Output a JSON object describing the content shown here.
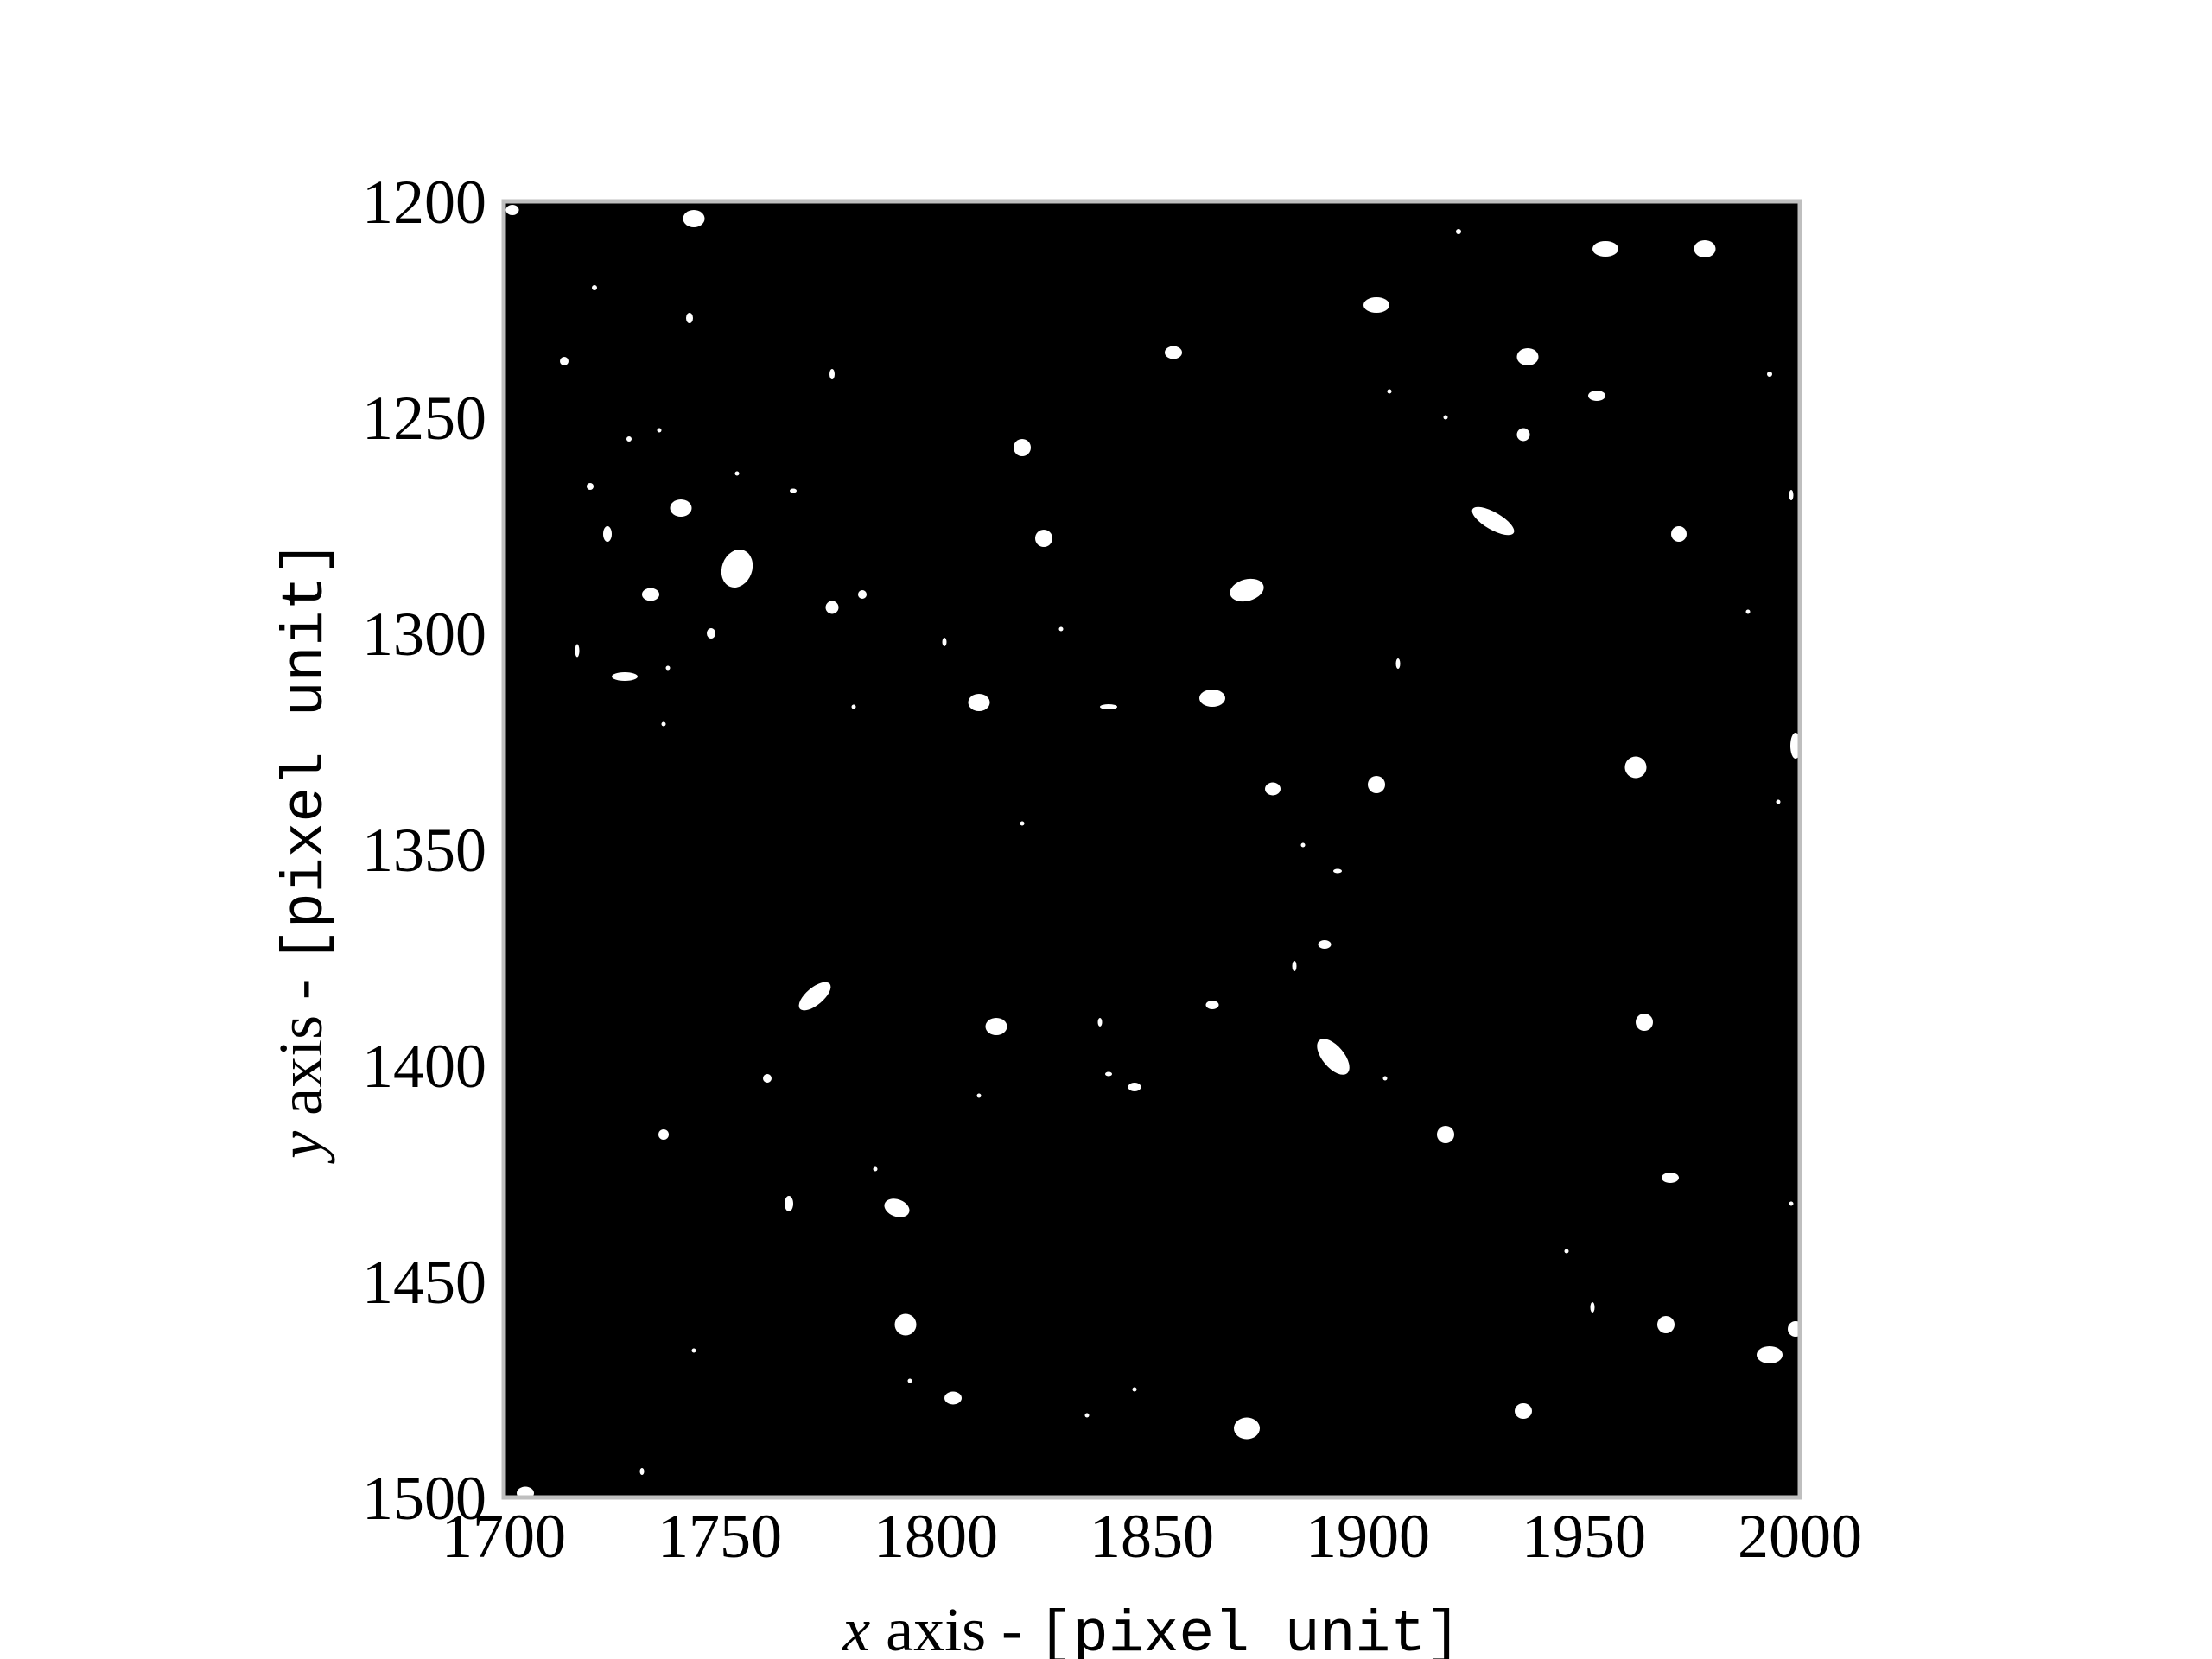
{
  "chart_data": {
    "type": "scatter",
    "title": "",
    "xlabel": {
      "var": "x",
      "text": " axis - ",
      "unit": "[pixel unit]"
    },
    "ylabel": {
      "var": "y",
      "text": " axis - ",
      "unit": "[pixel unit]"
    },
    "xlim": [
      1700,
      2000
    ],
    "ylim": [
      1200,
      1500
    ],
    "y_inverted": true,
    "grid": false,
    "legend": "none",
    "background_color": "#000000",
    "frame_color": "#bfbfbf",
    "point_color": "#ffffff",
    "xticks": [
      {
        "value": 1700,
        "label": "1700"
      },
      {
        "value": 1750,
        "label": "1750"
      },
      {
        "value": 1800,
        "label": "1800"
      },
      {
        "value": 1850,
        "label": "1850"
      },
      {
        "value": 1900,
        "label": "1900"
      },
      {
        "value": 1950,
        "label": "1950"
      },
      {
        "value": 2000,
        "label": "2000"
      }
    ],
    "yticks": [
      {
        "value": 1200,
        "label": "1200"
      },
      {
        "value": 1250,
        "label": "1250"
      },
      {
        "value": 1300,
        "label": "1300"
      },
      {
        "value": 1350,
        "label": "1350"
      },
      {
        "value": 1400,
        "label": "1400"
      },
      {
        "value": 1450,
        "label": "1450"
      },
      {
        "value": 1500,
        "label": "1500"
      }
    ],
    "series": [
      {
        "points": [
          {
            "x": 1702,
            "y": 1202,
            "rx": 1.5,
            "ry": 1.2
          },
          {
            "x": 1744,
            "y": 1204,
            "rx": 2.5,
            "ry": 2.0
          },
          {
            "x": 1921,
            "y": 1207,
            "rx": 0.6,
            "ry": 0.6
          },
          {
            "x": 1955,
            "y": 1211,
            "rx": 3.0,
            "ry": 1.8
          },
          {
            "x": 1978,
            "y": 1211,
            "rx": 2.5,
            "ry": 2.0
          },
          {
            "x": 1721,
            "y": 1220,
            "rx": 0.6,
            "ry": 0.6
          },
          {
            "x": 1902,
            "y": 1224,
            "rx": 3.0,
            "ry": 1.8
          },
          {
            "x": 1743,
            "y": 1227,
            "rx": 0.8,
            "ry": 1.2
          },
          {
            "x": 1855,
            "y": 1235,
            "rx": 2.0,
            "ry": 1.5
          },
          {
            "x": 1937,
            "y": 1236,
            "rx": 2.5,
            "ry": 2.0
          },
          {
            "x": 1714,
            "y": 1237,
            "rx": 1.0,
            "ry": 1.0
          },
          {
            "x": 1776,
            "y": 1240,
            "rx": 0.6,
            "ry": 1.2
          },
          {
            "x": 1993,
            "y": 1240,
            "rx": 0.6,
            "ry": 0.6
          },
          {
            "x": 1953,
            "y": 1245,
            "rx": 2.0,
            "ry": 1.2
          },
          {
            "x": 1905,
            "y": 1244,
            "rx": 0.5,
            "ry": 0.5
          },
          {
            "x": 1918,
            "y": 1250,
            "rx": 0.5,
            "ry": 0.5
          },
          {
            "x": 1736,
            "y": 1253,
            "rx": 0.5,
            "ry": 0.5
          },
          {
            "x": 1729,
            "y": 1255,
            "rx": 0.6,
            "ry": 0.6
          },
          {
            "x": 1936,
            "y": 1254,
            "rx": 1.5,
            "ry": 1.5
          },
          {
            "x": 1820,
            "y": 1257,
            "rx": 2.0,
            "ry": 2.0
          },
          {
            "x": 1754,
            "y": 1263,
            "rx": 0.5,
            "ry": 0.5
          },
          {
            "x": 1720,
            "y": 1266,
            "rx": 0.8,
            "ry": 0.8
          },
          {
            "x": 1767,
            "y": 1267,
            "rx": 0.8,
            "ry": 0.5
          },
          {
            "x": 1998,
            "y": 1268,
            "rx": 0.5,
            "ry": 1.2
          },
          {
            "x": 1741,
            "y": 1271,
            "rx": 2.5,
            "ry": 2.0
          },
          {
            "x": 1929,
            "y": 1274,
            "rx": 5.5,
            "ry": 2.0,
            "rotate": 30
          },
          {
            "x": 1724,
            "y": 1277,
            "rx": 1.0,
            "ry": 1.8
          },
          {
            "x": 1825,
            "y": 1278,
            "rx": 2.0,
            "ry": 2.0
          },
          {
            "x": 1972,
            "y": 1277,
            "rx": 1.8,
            "ry": 1.8
          },
          {
            "x": 1754,
            "y": 1285,
            "rx": 3.5,
            "ry": 4.5,
            "rotate": 20
          },
          {
            "x": 1872,
            "y": 1290,
            "rx": 4.0,
            "ry": 2.5,
            "rotate": -15
          },
          {
            "x": 1734,
            "y": 1291,
            "rx": 2.0,
            "ry": 1.5
          },
          {
            "x": 1783,
            "y": 1291,
            "rx": 1.0,
            "ry": 1.0
          },
          {
            "x": 1776,
            "y": 1294,
            "rx": 1.5,
            "ry": 1.5
          },
          {
            "x": 1988,
            "y": 1295,
            "rx": 0.5,
            "ry": 0.5
          },
          {
            "x": 1829,
            "y": 1299,
            "rx": 0.5,
            "ry": 0.5
          },
          {
            "x": 1748,
            "y": 1300,
            "rx": 1.0,
            "ry": 1.2
          },
          {
            "x": 1802,
            "y": 1302,
            "rx": 0.5,
            "ry": 1.0
          },
          {
            "x": 1717,
            "y": 1304,
            "rx": 0.5,
            "ry": 1.5
          },
          {
            "x": 1738,
            "y": 1308,
            "rx": 0.5,
            "ry": 0.5
          },
          {
            "x": 1907,
            "y": 1307,
            "rx": 0.5,
            "ry": 1.2
          },
          {
            "x": 1728,
            "y": 1310,
            "rx": 3.0,
            "ry": 1.0
          },
          {
            "x": 1810,
            "y": 1316,
            "rx": 2.5,
            "ry": 2.0
          },
          {
            "x": 1864,
            "y": 1315,
            "rx": 3.0,
            "ry": 2.0
          },
          {
            "x": 1840,
            "y": 1317,
            "rx": 2.0,
            "ry": 0.6
          },
          {
            "x": 1781,
            "y": 1317,
            "rx": 0.5,
            "ry": 0.5
          },
          {
            "x": 1737,
            "y": 1321,
            "rx": 0.5,
            "ry": 0.5
          },
          {
            "x": 1999,
            "y": 1326,
            "rx": 1.2,
            "ry": 3.0
          },
          {
            "x": 1962,
            "y": 1331,
            "rx": 2.5,
            "ry": 2.5
          },
          {
            "x": 1902,
            "y": 1335,
            "rx": 2.0,
            "ry": 2.0
          },
          {
            "x": 1878,
            "y": 1336,
            "rx": 1.8,
            "ry": 1.5
          },
          {
            "x": 1995,
            "y": 1339,
            "rx": 0.5,
            "ry": 0.5
          },
          {
            "x": 1820,
            "y": 1344,
            "rx": 0.5,
            "ry": 0.5
          },
          {
            "x": 1885,
            "y": 1349,
            "rx": 0.5,
            "ry": 0.5
          },
          {
            "x": 1893,
            "y": 1355,
            "rx": 1.0,
            "ry": 0.5
          },
          {
            "x": 1890,
            "y": 1372,
            "rx": 1.5,
            "ry": 1.0
          },
          {
            "x": 1883,
            "y": 1377,
            "rx": 0.5,
            "ry": 1.2
          },
          {
            "x": 1772,
            "y": 1384,
            "rx": 4.5,
            "ry": 2.0,
            "rotate": -40
          },
          {
            "x": 1864,
            "y": 1386,
            "rx": 1.5,
            "ry": 1.0
          },
          {
            "x": 1838,
            "y": 1390,
            "rx": 0.5,
            "ry": 1.0
          },
          {
            "x": 1814,
            "y": 1391,
            "rx": 2.5,
            "ry": 2.0
          },
          {
            "x": 1964,
            "y": 1390,
            "rx": 2.0,
            "ry": 2.0
          },
          {
            "x": 1892,
            "y": 1398,
            "rx": 5.0,
            "ry": 2.5,
            "rotate": 50
          },
          {
            "x": 1761,
            "y": 1403,
            "rx": 1.0,
            "ry": 1.0
          },
          {
            "x": 1840,
            "y": 1402,
            "rx": 0.8,
            "ry": 0.5
          },
          {
            "x": 1846,
            "y": 1405,
            "rx": 1.5,
            "ry": 1.0
          },
          {
            "x": 1904,
            "y": 1403,
            "rx": 0.5,
            "ry": 0.5
          },
          {
            "x": 1810,
            "y": 1407,
            "rx": 0.5,
            "ry": 0.5
          },
          {
            "x": 1918,
            "y": 1416,
            "rx": 2.0,
            "ry": 2.0
          },
          {
            "x": 1737,
            "y": 1416,
            "rx": 1.2,
            "ry": 1.2
          },
          {
            "x": 1786,
            "y": 1424,
            "rx": 0.5,
            "ry": 0.5
          },
          {
            "x": 1970,
            "y": 1426,
            "rx": 2.0,
            "ry": 1.2
          },
          {
            "x": 1766,
            "y": 1432,
            "rx": 1.0,
            "ry": 1.8
          },
          {
            "x": 1791,
            "y": 1433,
            "rx": 3.0,
            "ry": 2.0,
            "rotate": 20
          },
          {
            "x": 1998,
            "y": 1432,
            "rx": 0.5,
            "ry": 0.5
          },
          {
            "x": 1946,
            "y": 1443,
            "rx": 0.5,
            "ry": 0.5
          },
          {
            "x": 1952,
            "y": 1456,
            "rx": 0.5,
            "ry": 1.2
          },
          {
            "x": 1793,
            "y": 1460,
            "rx": 2.5,
            "ry": 2.5
          },
          {
            "x": 1969,
            "y": 1460,
            "rx": 2.0,
            "ry": 2.0
          },
          {
            "x": 1999,
            "y": 1461,
            "rx": 1.8,
            "ry": 1.8
          },
          {
            "x": 1744,
            "y": 1466,
            "rx": 0.5,
            "ry": 0.5
          },
          {
            "x": 1993,
            "y": 1467,
            "rx": 3.0,
            "ry": 2.0
          },
          {
            "x": 1794,
            "y": 1473,
            "rx": 0.5,
            "ry": 0.5
          },
          {
            "x": 1846,
            "y": 1475,
            "rx": 0.5,
            "ry": 0.5
          },
          {
            "x": 1804,
            "y": 1477,
            "rx": 2.0,
            "ry": 1.5
          },
          {
            "x": 1936,
            "y": 1480,
            "rx": 2.0,
            "ry": 1.8
          },
          {
            "x": 1835,
            "y": 1481,
            "rx": 0.5,
            "ry": 0.5
          },
          {
            "x": 1872,
            "y": 1484,
            "rx": 3.0,
            "ry": 2.5
          },
          {
            "x": 1732,
            "y": 1494,
            "rx": 0.5,
            "ry": 0.8
          },
          {
            "x": 1705,
            "y": 1499,
            "rx": 2.0,
            "ry": 1.5
          }
        ]
      }
    ]
  }
}
